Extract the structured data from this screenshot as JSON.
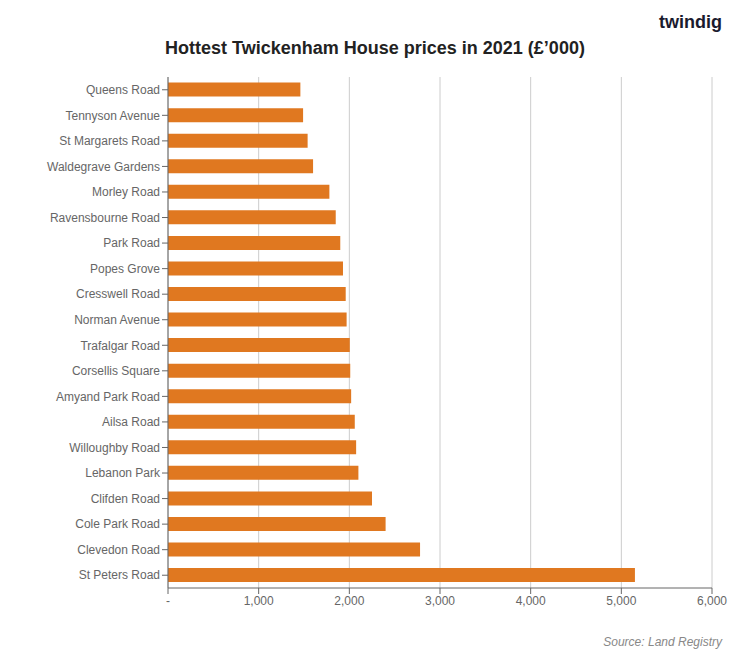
{
  "chart_data": {
    "type": "bar",
    "orientation": "horizontal",
    "title": "Hottest Twickenham House prices in 2021 (£’000)",
    "categories": [
      "St Peters Road",
      "Clevedon Road",
      "Cole Park Road",
      "Clifden Road",
      "Lebanon Park",
      "Willoughby Road",
      "Ailsa Road",
      "Amyand Park Road",
      "Corsellis Square",
      "Trafalgar Road",
      "Norman Avenue",
      "Cresswell Road",
      "Popes Grove",
      "Park Road",
      "Ravensbourne Road",
      "Morley Road",
      "Waldegrave Gardens",
      "St Margarets Road",
      "Tennyson Avenue",
      "Queens Road"
    ],
    "values": [
      5150,
      2780,
      2400,
      2250,
      2100,
      2075,
      2060,
      2020,
      2010,
      2005,
      1970,
      1960,
      1930,
      1900,
      1850,
      1780,
      1600,
      1540,
      1490,
      1460
    ],
    "color": "#e07820",
    "xlim": [
      0,
      6000
    ],
    "xticks": [
      {
        "value": 0,
        "label": "-"
      },
      {
        "value": 1000,
        "label": "1,000"
      },
      {
        "value": 2000,
        "label": "2,000"
      },
      {
        "value": 3000,
        "label": "3,000"
      },
      {
        "value": 4000,
        "label": "4,000"
      },
      {
        "value": 5000,
        "label": "5,000"
      },
      {
        "value": 6000,
        "label": "6,000"
      }
    ],
    "grid": true,
    "annotations": [
      "twindig",
      "Source: Land Registry"
    ]
  }
}
